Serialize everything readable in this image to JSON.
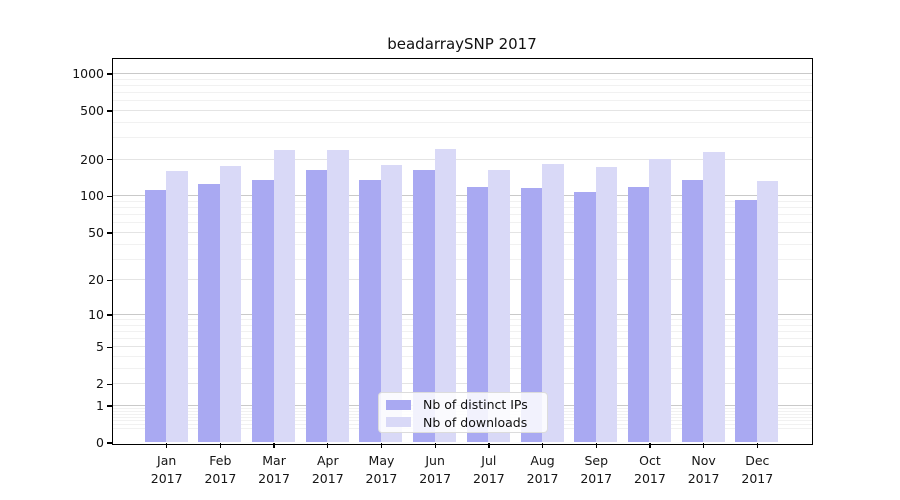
{
  "title": "beadarraySNP 2017",
  "chart_data": {
    "type": "bar",
    "title": "beadarraySNP 2017",
    "categories": [
      "Jan",
      "Feb",
      "Mar",
      "Apr",
      "May",
      "Jun",
      "Jul",
      "Aug",
      "Sep",
      "Oct",
      "Nov",
      "Dec"
    ],
    "year": "2017",
    "series": [
      {
        "name": "Nb of distinct IPs",
        "color": "#a9a9f2",
        "values": [
          111,
          126,
          135,
          162,
          134,
          163,
          118,
          116,
          107,
          118,
          136,
          92
        ]
      },
      {
        "name": "Nb of downloads",
        "color": "#d9d9f7",
        "values": [
          160,
          175,
          240,
          236,
          181,
          243,
          163,
          184,
          172,
          200,
          230,
          132
        ]
      }
    ],
    "xlabel": "",
    "ylabel": "",
    "yscale": "log10(value+1)",
    "ylim": [
      0,
      1320
    ],
    "yticks": [
      0,
      1,
      2,
      5,
      10,
      20,
      50,
      100,
      200,
      500,
      1000
    ],
    "emphasized_gridlines": [
      1,
      10,
      100,
      1000
    ],
    "minor_gridlines": [
      0.3,
      0.4,
      0.5,
      0.6,
      0.7,
      0.8,
      0.9,
      3,
      4,
      6,
      7,
      8,
      9,
      30,
      40,
      60,
      70,
      80,
      90,
      300,
      400,
      600,
      700,
      800,
      900
    ],
    "grid": true,
    "legend_position": "lower center"
  }
}
